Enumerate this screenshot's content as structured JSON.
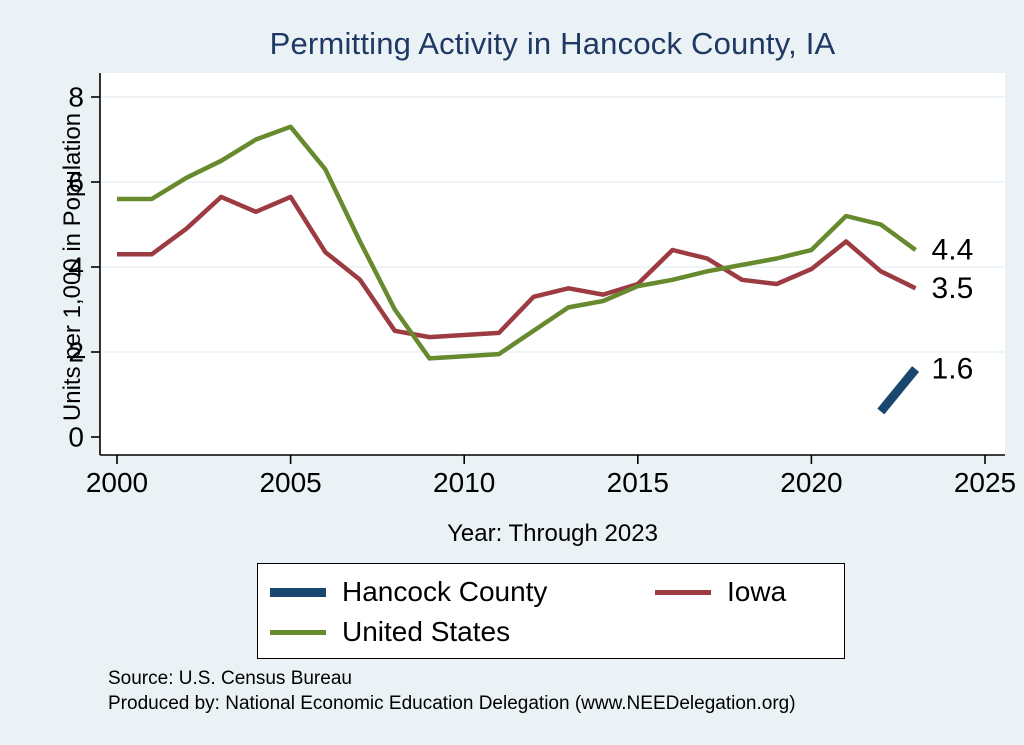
{
  "figure": {
    "background_color": "#eaf2f6",
    "plot_background_color": "#ffffff",
    "title_color": "#1f3864"
  },
  "chart_data": {
    "type": "line",
    "title": "Permitting Activity in Hancock County, IA",
    "xlabel": "Year: Through 2023",
    "ylabel": "Units per 1,000 in Population",
    "xlim": [
      2000,
      2025
    ],
    "ylim": [
      0,
      8
    ],
    "xticks": [
      2000,
      2005,
      2010,
      2015,
      2020,
      2025
    ],
    "yticks": [
      0,
      2,
      4,
      6,
      8
    ],
    "grid": true,
    "legend_position": "bottom",
    "series": [
      {
        "name": "Hancock County",
        "color": "#1a476f",
        "width": 9,
        "x": [
          2022,
          2023
        ],
        "values": [
          0.6,
          1.6
        ],
        "end_label": "1.6"
      },
      {
        "name": "Iowa",
        "color": "#9d3b43",
        "width": 4.5,
        "x": [
          2000,
          2001,
          2002,
          2003,
          2004,
          2005,
          2006,
          2007,
          2008,
          2009,
          2010,
          2011,
          2012,
          2013,
          2014,
          2015,
          2016,
          2017,
          2018,
          2019,
          2020,
          2021,
          2022,
          2023
        ],
        "values": [
          4.3,
          4.3,
          4.9,
          5.65,
          5.3,
          5.65,
          4.35,
          3.7,
          2.5,
          2.35,
          2.4,
          2.45,
          3.3,
          3.5,
          3.35,
          3.6,
          4.4,
          4.2,
          3.7,
          3.6,
          3.95,
          4.6,
          3.9,
          3.5
        ],
        "end_label": "3.5"
      },
      {
        "name": "United States",
        "color": "#678a2f",
        "width": 4.5,
        "x": [
          2000,
          2001,
          2002,
          2003,
          2004,
          2005,
          2006,
          2007,
          2008,
          2009,
          2010,
          2011,
          2012,
          2013,
          2014,
          2015,
          2016,
          2017,
          2018,
          2019,
          2020,
          2021,
          2022,
          2023
        ],
        "values": [
          5.6,
          5.6,
          6.1,
          6.5,
          7.0,
          7.3,
          6.3,
          4.6,
          3.0,
          1.85,
          1.9,
          1.95,
          2.5,
          3.05,
          3.2,
          3.55,
          3.7,
          3.9,
          4.05,
          4.2,
          4.4,
          5.2,
          5.0,
          4.4
        ],
        "end_label": "4.4"
      }
    ]
  },
  "legend": {
    "row1_left": "Hancock County",
    "row1_right": "Iowa",
    "row2_left": "United States"
  },
  "footer": {
    "source": "Source: U.S. Census Bureau",
    "produced_by": "Produced by: National Economic Education Delegation (www.NEEDelegation.org)"
  }
}
